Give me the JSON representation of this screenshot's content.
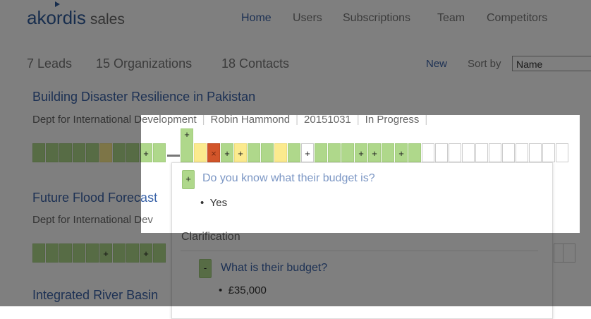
{
  "app": {
    "brand": "akordis",
    "product": "sales"
  },
  "nav": [
    {
      "label": "Home",
      "active": true
    },
    {
      "label": "Users"
    },
    {
      "label": "Subscriptions"
    },
    {
      "label": "Team"
    },
    {
      "label": "Competitors"
    }
  ],
  "stats": {
    "leads": "7 Leads",
    "organizations": "15 Organizations",
    "contacts": "18 Contacts"
  },
  "toolbar": {
    "new_label": "New",
    "sort_label": "Sort by",
    "sort_value": "Name"
  },
  "leads": [
    {
      "title": "Building Disaster Resilience in Pakistan",
      "organization": "Dept for International Development",
      "contact": "Robin Hammond",
      "date": "20151031",
      "status": "In Progress",
      "cells": [
        "g",
        "g",
        "g",
        "g",
        "g",
        "y",
        "g",
        "g",
        "g+",
        "g",
        "gap",
        "g+raised",
        "y",
        "rx",
        "g+",
        "y+",
        "g",
        "g",
        "y",
        "g",
        "w+",
        "g",
        "g",
        "g",
        "g+",
        "g+",
        "g",
        "g+",
        "g",
        "w",
        "w",
        "w",
        "w",
        "w",
        "w",
        "w",
        "w",
        "w",
        "w",
        "w"
      ]
    },
    {
      "title": "Future Flood Forecast",
      "organization": "Dept for International Dev",
      "cells": [
        "g",
        "g",
        "g",
        "g",
        "g",
        "g+",
        "g",
        "g",
        "g+",
        "g"
      ]
    },
    {
      "title": "Integrated River Basin"
    }
  ],
  "popup": {
    "question": "Do you know what their budget is?",
    "question_badge": "+",
    "answer": "Yes",
    "section": "Clarification",
    "sub_question": "What is their budget?",
    "sub_badge": "-",
    "sub_answer": "£35,000"
  },
  "colors": {
    "green": "#afd88b",
    "yellow": "#fbea8e",
    "red": "#d2552a",
    "link": "#3a63a8",
    "dim_overlay": "rgba(0,0,0,0.5)"
  }
}
